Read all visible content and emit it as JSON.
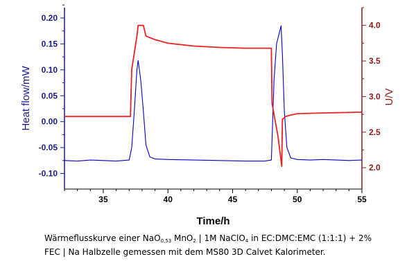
{
  "chart_data": {
    "type": "line",
    "xlabel": "Time/h",
    "ylabel_left": "Heat flow/mW",
    "ylabel_right": "U/V",
    "xlim": [
      32,
      55
    ],
    "ylim_left": [
      -0.13,
      0.22
    ],
    "ylim_right": [
      1.7,
      4.25
    ],
    "x_ticks": [
      "35",
      "40",
      "45",
      "50",
      "55"
    ],
    "y_left_ticks": [
      "-0.10",
      "-0.05",
      "0.00",
      "0.05",
      "0.10",
      "0.15",
      "0.20"
    ],
    "y_right_ticks": [
      "2.0",
      "2.5",
      "3.0",
      "3.5",
      "4.0"
    ],
    "grid": false,
    "series": [
      {
        "axis": "left",
        "color": "#0000cc",
        "x": [
          32,
          33,
          34,
          35,
          36,
          37,
          37.2,
          37.4,
          37.6,
          37.7,
          37.9,
          38.1,
          38.3,
          38.6,
          39,
          40,
          42,
          44,
          46,
          47.5,
          48.0,
          48.2,
          48.4,
          48.6,
          48.75,
          48.85,
          49.0,
          49.2,
          49.5,
          50,
          51,
          52,
          53,
          54,
          55
        ],
        "y": [
          -0.075,
          -0.076,
          -0.074,
          -0.075,
          -0.076,
          -0.074,
          -0.05,
          0.02,
          0.1,
          0.118,
          0.08,
          0.02,
          -0.045,
          -0.068,
          -0.072,
          -0.073,
          -0.074,
          -0.075,
          -0.076,
          -0.076,
          -0.074,
          0.08,
          0.15,
          0.17,
          0.185,
          0.13,
          0.02,
          -0.05,
          -0.07,
          -0.073,
          -0.074,
          -0.073,
          -0.074,
          -0.075,
          -0.074
        ]
      },
      {
        "axis": "right",
        "color": "#ee2222",
        "x": [
          32,
          37.1,
          37.2,
          37.6,
          37.7,
          38.1,
          38.3,
          39,
          40,
          42,
          44,
          46,
          48.0,
          48.05,
          48.2,
          48.5,
          48.8,
          48.85,
          49.1,
          49.5,
          50,
          52,
          55
        ],
        "y": [
          2.72,
          2.72,
          3.38,
          3.85,
          4.0,
          4.0,
          3.85,
          3.8,
          3.75,
          3.71,
          3.69,
          3.68,
          3.68,
          2.9,
          2.75,
          2.45,
          2.02,
          2.68,
          2.72,
          2.74,
          2.76,
          2.77,
          2.78
        ]
      }
    ]
  },
  "caption": {
    "part1": "Wärmeflusskurve einer NaO",
    "sub1": "0,53",
    "part2": " MnO",
    "sub2": "2",
    "part3": " | 1M NaClO",
    "sub3": "4",
    "part4": " in EC:DMC:EMC (1:1:1) + 2% FEC | Na Halbzelle gemessen mit dem MS80 3D Calvet Kalorimeter."
  }
}
